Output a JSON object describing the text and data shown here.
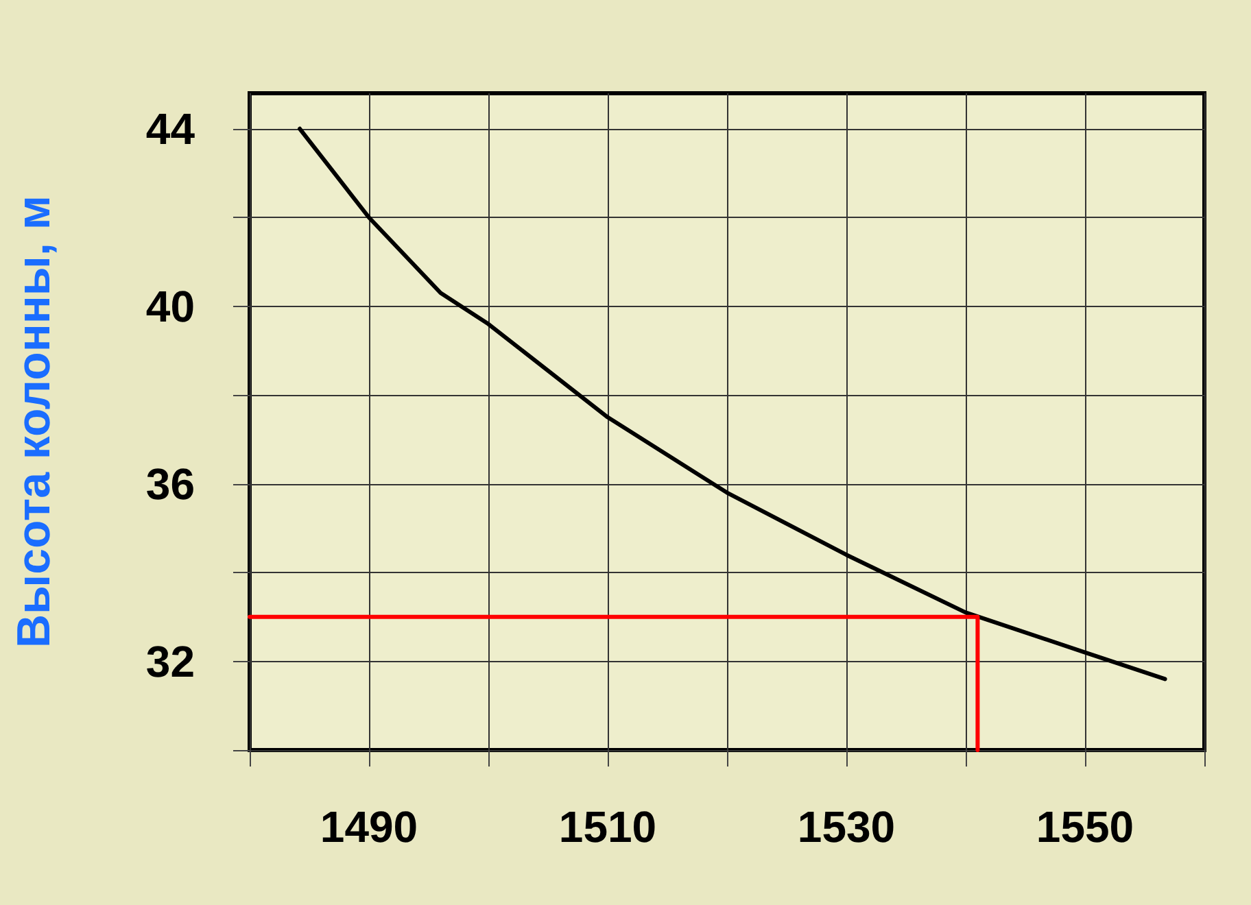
{
  "chart_data": {
    "type": "line",
    "ylabel": "Высота колонны, м",
    "xlim": [
      1480,
      1560
    ],
    "xticks": [
      {
        "value": 1480,
        "label": null
      },
      1490,
      {
        "value": 1500,
        "label": null
      },
      1510,
      {
        "value": 1520,
        "label": null
      },
      1530,
      {
        "value": 1540,
        "label": null
      },
      1550,
      {
        "value": 1560,
        "label": null
      }
    ],
    "ylim": [
      30,
      44.8
    ],
    "yticks": [
      {
        "value": 30,
        "label": null
      },
      32,
      {
        "value": 34,
        "label": null
      },
      36,
      {
        "value": 38,
        "label": null
      },
      40,
      {
        "value": 42,
        "label": null
      },
      44
    ],
    "grid": true,
    "series": [
      {
        "color": "#000000",
        "x": [
          1484.2,
          1490,
          1496,
          1500,
          1510,
          1520,
          1530,
          1540,
          1550,
          1556.7
        ],
        "values": [
          44.0,
          42.0,
          40.3,
          39.6,
          37.5,
          35.8,
          34.4,
          33.1,
          32.2,
          31.6
        ]
      },
      {
        "color": "#ff0000",
        "x": [
          1480,
          1541,
          1541
        ],
        "values": [
          33,
          33,
          30
        ]
      }
    ]
  }
}
